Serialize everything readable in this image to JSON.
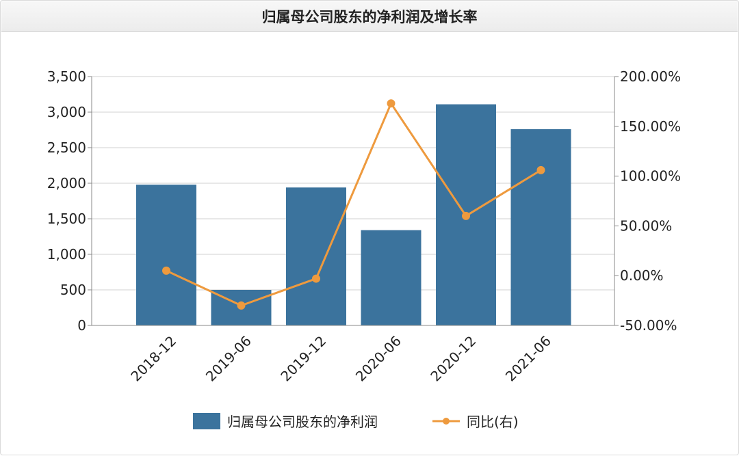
{
  "title": "归属母公司股东的净利润及增长率",
  "chart_data": {
    "type": "bar",
    "categories": [
      "2018-12",
      "2019-06",
      "2019-12",
      "2020-06",
      "2020-12",
      "2021-06"
    ],
    "series": [
      {
        "name": "归属母公司股东的净利润",
        "type": "bar",
        "axis": "left",
        "values": [
          1980,
          500,
          1940,
          1340,
          3110,
          2760
        ]
      },
      {
        "name": "同比(右)",
        "type": "line",
        "axis": "right",
        "values": [
          5.0,
          -30.0,
          -3.0,
          173.0,
          60.0,
          106.0
        ]
      }
    ],
    "y_left": {
      "ylim": [
        0,
        3500
      ],
      "tick_labels": [
        "0",
        "500",
        "1,000",
        "1,500",
        "2,000",
        "2,500",
        "3,000",
        "3,500"
      ]
    },
    "y_right": {
      "ylim": [
        -50,
        200
      ],
      "tick_labels": [
        "-50.00%",
        "0.00%",
        "50.00%",
        "100.00%",
        "150.00%",
        "200.00%"
      ]
    },
    "grid": true,
    "legend": "bottom",
    "colors": {
      "bar": "#3b739d",
      "line": "#ee9a3e"
    }
  }
}
